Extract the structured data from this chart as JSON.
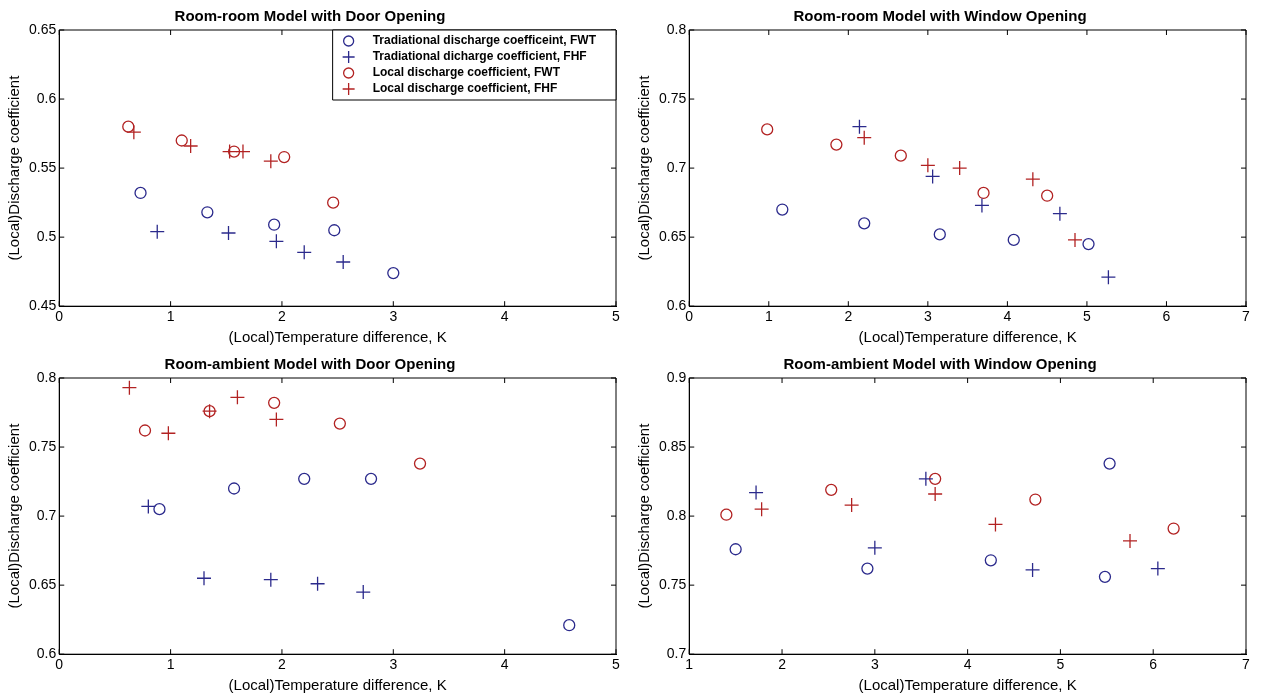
{
  "chart_data": [
    {
      "type": "scatter",
      "title": "Room-room Model with Door Opening",
      "xlabel": "(Local)Temperature difference, K",
      "ylabel": "(Local)Discharge coefficient",
      "xlim": [
        0,
        5
      ],
      "xticks": [
        0,
        1,
        2,
        3,
        4,
        5
      ],
      "ylim": [
        0.45,
        0.65
      ],
      "yticks": [
        0.45,
        0.5,
        0.55,
        0.6,
        0.65
      ],
      "grid": false,
      "legend": "top right",
      "series": [
        {
          "name": "Tradiational discharge coefficeint, FWT",
          "color": "#2b2a8c",
          "marker": "circle",
          "x": [
            0.73,
            1.33,
            1.93,
            2.47,
            3.0
          ],
          "values": [
            0.532,
            0.518,
            0.509,
            0.505,
            0.474
          ]
        },
        {
          "name": "Tradiational dicharge coefficient, FHF",
          "color": "#2b2a8c",
          "marker": "cross",
          "x": [
            0.88,
            1.52,
            1.95,
            2.2,
            2.55
          ],
          "values": [
            0.504,
            0.503,
            0.497,
            0.489,
            0.482
          ]
        },
        {
          "name": "Local discharge coefficient, FWT",
          "color": "#b22222",
          "marker": "circle",
          "x": [
            0.62,
            1.1,
            1.57,
            2.02,
            2.46
          ],
          "values": [
            0.58,
            0.57,
            0.562,
            0.558,
            0.525
          ]
        },
        {
          "name": "Local discharge coefficient, FHF",
          "color": "#b22222",
          "marker": "cross",
          "x": [
            0.67,
            1.18,
            1.53,
            1.65,
            1.9
          ],
          "values": [
            0.576,
            0.566,
            0.562,
            0.562,
            0.555
          ]
        }
      ]
    },
    {
      "type": "scatter",
      "title": "Room-room Model with Window Opening",
      "xlabel": "(Local)Temperature difference, K",
      "ylabel": "(Local)Discharge coefficient",
      "xlim": [
        0,
        7
      ],
      "xticks": [
        0,
        1,
        2,
        3,
        4,
        5,
        6,
        7
      ],
      "ylim": [
        0.6,
        0.8
      ],
      "yticks": [
        0.6,
        0.65,
        0.7,
        0.75,
        0.8
      ],
      "grid": false,
      "series": [
        {
          "color": "#2b2a8c",
          "marker": "circle",
          "x": [
            1.17,
            2.2,
            3.15,
            4.08,
            5.02
          ],
          "values": [
            0.67,
            0.66,
            0.652,
            0.648,
            0.645
          ]
        },
        {
          "color": "#2b2a8c",
          "marker": "cross",
          "x": [
            2.14,
            3.06,
            3.68,
            4.66,
            5.27
          ],
          "values": [
            0.73,
            0.694,
            0.673,
            0.667,
            0.621
          ]
        },
        {
          "color": "#b22222",
          "marker": "circle",
          "x": [
            0.98,
            1.85,
            2.66,
            3.7,
            4.5
          ],
          "values": [
            0.728,
            0.717,
            0.709,
            0.682,
            0.68
          ]
        },
        {
          "color": "#b22222",
          "marker": "cross",
          "x": [
            2.2,
            3.0,
            3.4,
            4.32,
            4.85
          ],
          "values": [
            0.722,
            0.702,
            0.7,
            0.692,
            0.648
          ]
        }
      ]
    },
    {
      "type": "scatter",
      "title": "Room-ambient Model with Door Opening",
      "xlabel": "(Local)Temperature difference, K",
      "ylabel": "(Local)Discharge coefficient",
      "xlim": [
        0,
        5
      ],
      "xticks": [
        0,
        1,
        2,
        3,
        4,
        5
      ],
      "ylim": [
        0.6,
        0.8
      ],
      "yticks": [
        0.6,
        0.65,
        0.7,
        0.75,
        0.8
      ],
      "grid": false,
      "series": [
        {
          "color": "#2b2a8c",
          "marker": "circle",
          "x": [
            0.9,
            1.57,
            2.2,
            2.8,
            4.58
          ],
          "values": [
            0.705,
            0.72,
            0.727,
            0.727,
            0.621
          ]
        },
        {
          "color": "#2b2a8c",
          "marker": "cross",
          "x": [
            0.8,
            1.3,
            1.9,
            2.32,
            2.73
          ],
          "values": [
            0.707,
            0.655,
            0.654,
            0.651,
            0.645
          ]
        },
        {
          "color": "#b22222",
          "marker": "circle",
          "x": [
            0.77,
            1.35,
            1.93,
            2.52,
            3.24
          ],
          "values": [
            0.762,
            0.776,
            0.782,
            0.767,
            0.738
          ]
        },
        {
          "color": "#b22222",
          "marker": "cross",
          "x": [
            0.63,
            0.98,
            1.35,
            1.6,
            1.95
          ],
          "values": [
            0.793,
            0.76,
            0.776,
            0.786,
            0.77
          ]
        }
      ]
    },
    {
      "type": "scatter",
      "title": "Room-ambient Model with Window Opening",
      "xlabel": "(Local)Temperature difference, K",
      "ylabel": "(Local)Discharge coefficient",
      "xlim": [
        1,
        7
      ],
      "xticks": [
        1,
        2,
        3,
        4,
        5,
        6,
        7
      ],
      "ylim": [
        0.7,
        0.9
      ],
      "yticks": [
        0.7,
        0.75,
        0.8,
        0.85,
        0.9
      ],
      "grid": false,
      "series": [
        {
          "color": "#2b2a8c",
          "marker": "circle",
          "x": [
            1.5,
            2.92,
            4.25,
            5.48,
            5.53
          ],
          "values": [
            0.776,
            0.762,
            0.768,
            0.756,
            0.838
          ]
        },
        {
          "color": "#2b2a8c",
          "marker": "cross",
          "x": [
            1.72,
            3.0,
            3.55,
            4.7,
            6.05
          ],
          "values": [
            0.817,
            0.777,
            0.827,
            0.761,
            0.762
          ]
        },
        {
          "color": "#b22222",
          "marker": "circle",
          "x": [
            1.4,
            2.53,
            3.65,
            4.73,
            6.22
          ],
          "values": [
            0.801,
            0.819,
            0.827,
            0.812,
            0.791
          ]
        },
        {
          "color": "#b22222",
          "marker": "cross",
          "x": [
            1.78,
            2.75,
            3.65,
            4.3,
            5.75
          ],
          "values": [
            0.805,
            0.808,
            0.816,
            0.794,
            0.782
          ]
        }
      ]
    }
  ]
}
